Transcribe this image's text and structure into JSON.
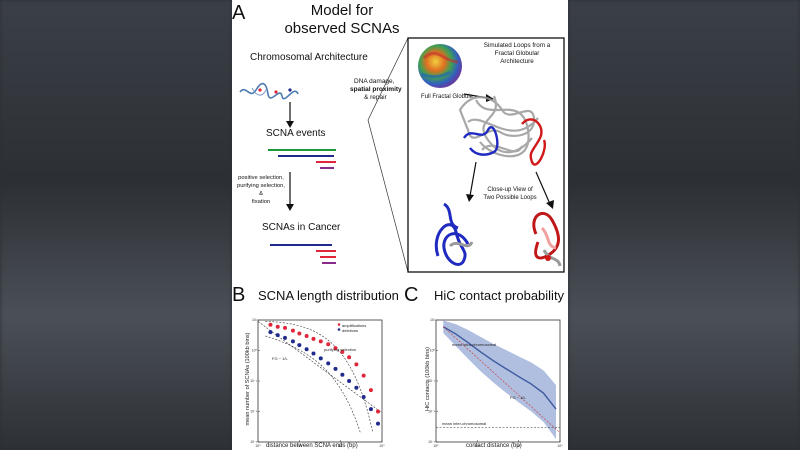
{
  "panel_a": {
    "letter": "A",
    "title_line1": "Model for",
    "title_line2": "observed SCNAs",
    "chromosomal_architecture": "Chromosomal Architecture",
    "arrow1_line1": "DNA damage,",
    "arrow1_line2": "spatial proximity",
    "arrow1_line3": "& repair",
    "scna_events": "SCNA events",
    "arrow2_line1": "positive selection,",
    "arrow2_line2": "purifying selection,",
    "arrow2_line3": "&",
    "arrow2_line4": "fixation",
    "scnas_in_cancer": "SCNAs in Cancer",
    "inset_title_line1": "Simulated Loops from a",
    "inset_title_line2": "Fractal Globular",
    "inset_title_line3": "Architecture",
    "full_globule": "Full Fractal Globule",
    "closeup_line1": "Close-up View of",
    "closeup_line2": "Two Possible Loops"
  },
  "panel_b": {
    "letter": "B",
    "title": "SCNA length distribution",
    "ylabel": "mean number of SCNAs (100kb bins)",
    "xlabel": "distance between SCNA ends (bp)",
    "legend": [
      "amplifications",
      "deletions"
    ],
    "annotation_purifying": "purifying selection",
    "annotation_fit": "FG ~ 1/L"
  },
  "panel_c": {
    "letter": "C",
    "title": "HiC contact probability",
    "ylabel": "HiC contacts (100kb bins)",
    "xlabel": "contact distance (bp)",
    "annotation_intra": "mean intra-chromosomal",
    "annotation_inter": "mean inter-chromosomal",
    "annotation_fit": "FG ~ 1/L"
  },
  "colors": {
    "amplification": "#e0263a",
    "deletion": "#1f2a8a",
    "hic_line": "#3d5aa0",
    "hic_band": "#8ea3d1",
    "green_bar": "#1a9a3a",
    "purple_bar": "#8a2a8a"
  },
  "chart_data": [
    {
      "type": "scatter",
      "title": "SCNA length distribution",
      "xlabel": "distance between SCNA ends (bp)",
      "ylabel": "mean number of SCNAs (100kb bins)",
      "xscale": "log",
      "yscale": "log",
      "xlim": [
        100000,
        100000000
      ],
      "ylim": [
        0.001,
        10
      ],
      "series": [
        {
          "name": "amplifications",
          "x": [
            200000,
            300000,
            450000,
            700000,
            1000000,
            1500000,
            2200000,
            3300000,
            5000000,
            7500000,
            11000000,
            16000000,
            24000000,
            36000000,
            54000000,
            80000000
          ],
          "values": [
            7,
            6,
            5.5,
            4.5,
            3.6,
            3,
            2.4,
            2,
            1.6,
            1.2,
            0.9,
            0.6,
            0.35,
            0.15,
            0.05,
            0.01
          ]
        },
        {
          "name": "deletions",
          "x": [
            200000,
            300000,
            450000,
            700000,
            1000000,
            1500000,
            2200000,
            3300000,
            5000000,
            7500000,
            11000000,
            16000000,
            24000000,
            36000000,
            54000000,
            80000000
          ],
          "values": [
            4,
            3.2,
            2.6,
            2,
            1.5,
            1.1,
            0.8,
            0.55,
            0.38,
            0.25,
            0.16,
            0.1,
            0.06,
            0.03,
            0.012,
            0.004
          ]
        }
      ]
    },
    {
      "type": "line",
      "title": "HiC contact probability",
      "xlabel": "contact distance (bp)",
      "ylabel": "HiC contacts (100kb bins)",
      "xscale": "log",
      "yscale": "log",
      "xlim": [
        100000,
        100000000
      ],
      "ylim": [
        0.001,
        10
      ],
      "series": [
        {
          "name": "",
          "x": [
            150000,
            300000,
            600000,
            1200000,
            2500000,
            5000000,
            10000000,
            20000000,
            40000000,
            80000000
          ],
          "values": [
            6,
            3.5,
            1.8,
            0.9,
            0.45,
            0.25,
            0.14,
            0.08,
            0.04,
            0.012
          ]
        }
      ]
    }
  ]
}
